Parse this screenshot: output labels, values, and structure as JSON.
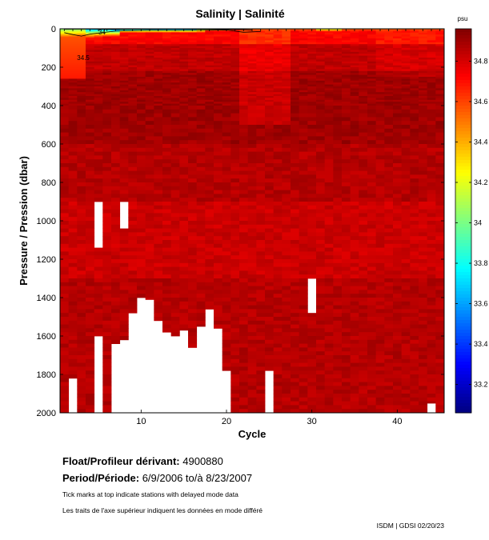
{
  "chart_data": {
    "type": "heatmap",
    "title": "Salinity | Salinité",
    "xlabel": "Cycle",
    "ylabel": "Pressure / Pression (dbar)",
    "xlim": [
      0.5,
      45.5
    ],
    "ylim": [
      2000,
      0
    ],
    "x_ticks": [
      10,
      20,
      30,
      40
    ],
    "y_ticks": [
      0,
      200,
      400,
      600,
      800,
      1000,
      1200,
      1400,
      1600,
      1800,
      2000
    ],
    "colorbar": {
      "unit": "psu",
      "range": [
        33.06,
        34.96
      ],
      "ticks": [
        "33.2",
        "33.4",
        "33.6",
        "33.8",
        "34",
        "34.2",
        "34.4",
        "34.6",
        "34.8"
      ]
    },
    "contour_labels": [
      "34",
      "34.5"
    ],
    "cycles": 45,
    "cycle_bottoms_dbar": [
      2000,
      1820,
      2000,
      2000,
      1600,
      2000,
      1640,
      1620,
      1480,
      1400,
      1410,
      1520,
      1580,
      1600,
      1570,
      1660,
      1550,
      1460,
      1560,
      1780,
      2000,
      2000,
      2000,
      2000,
      1780,
      2000,
      2000,
      2000,
      2000,
      2000,
      2000,
      2000,
      2000,
      2000,
      2000,
      2000,
      2000,
      2000,
      2000,
      2000,
      2000,
      2000,
      2000,
      1950,
      2000
    ],
    "data_gaps_dbar": [
      {
        "cycle": 5,
        "from": 900,
        "to": 1150
      },
      {
        "cycle": 8,
        "from": 900,
        "to": 1050
      },
      {
        "cycle": 30,
        "from": 1300,
        "to": 1480
      }
    ],
    "delayed_mode_cycles": [
      1,
      2,
      3,
      4,
      5,
      6,
      7,
      8,
      9,
      10,
      11,
      12,
      13,
      14,
      15,
      16,
      17,
      18,
      19,
      20,
      21,
      22,
      23,
      24,
      25,
      26,
      27,
      28,
      29,
      30,
      31,
      32,
      33,
      34,
      35,
      36,
      37,
      38,
      39,
      40,
      41,
      42,
      43,
      44,
      45
    ]
  },
  "info": {
    "float_label": "Float/Profileur dérivant:",
    "float_value": "4900880",
    "period_label": "Period/Période:",
    "period_value": "6/9/2006  to/à  8/23/2007",
    "note_en": "Tick marks at top indicate stations with delayed mode data",
    "note_fr": "Les traits de l'axe supérieur indiquent les données en mode différé",
    "credit": "ISDM | GDSI  02/20/23"
  }
}
